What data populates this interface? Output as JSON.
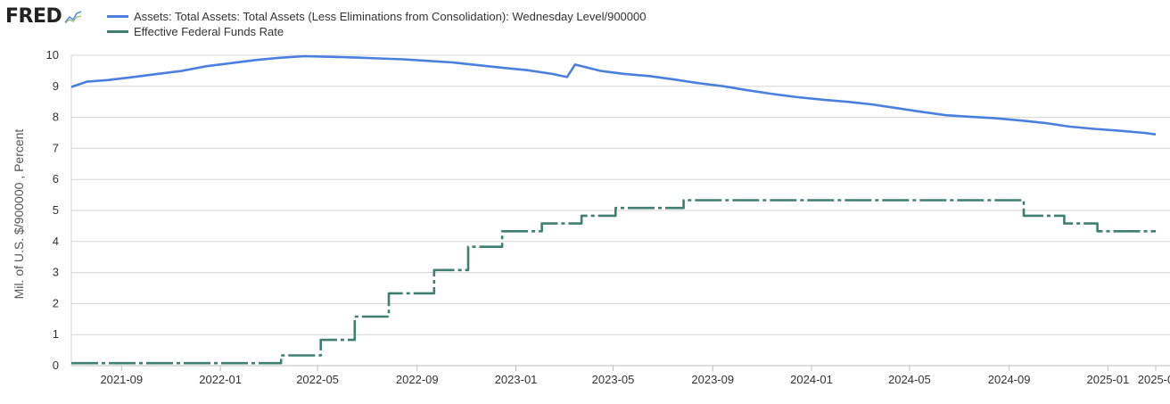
{
  "header": {
    "logo_text": "FRED",
    "logo_icon": "chart-line-icon"
  },
  "legend": {
    "items": [
      {
        "label": "Assets: Total Assets: Total Assets (Less Eliminations from Consolidation): Wednesday Level/900000",
        "color": "#4a7fe0"
      },
      {
        "label": "Effective Federal Funds Rate",
        "color": "#3f7f70"
      }
    ]
  },
  "chart_data": {
    "type": "line",
    "ylabel": "Mil. of U.S. $/900000 , Percent",
    "ylim": [
      0,
      10
    ],
    "yticks": [
      0,
      1,
      2,
      3,
      4,
      5,
      6,
      7,
      8,
      9,
      10
    ],
    "xlim": [
      "2021-07-01",
      "2025-03-01"
    ],
    "xticks": [
      "2021-09",
      "2022-01",
      "2022-05",
      "2022-09",
      "2023-01",
      "2023-05",
      "2023-09",
      "2024-01",
      "2024-05",
      "2024-09",
      "2025-01",
      "2025-0"
    ],
    "grid": "horizontal",
    "legend_position": "top-left",
    "series": [
      {
        "name": "Assets: Total Assets: Total Assets (Less Eliminations from Consolidation): Wednesday Level/900000",
        "color": "#4a7fe0",
        "style": "solid",
        "x": [
          "2021-07-01",
          "2021-07-20",
          "2021-08-15",
          "2021-09-15",
          "2021-10-15",
          "2021-11-15",
          "2021-12-15",
          "2022-01-15",
          "2022-02-15",
          "2022-03-15",
          "2022-04-15",
          "2022-05-15",
          "2022-06-15",
          "2022-07-15",
          "2022-08-15",
          "2022-09-15",
          "2022-10-15",
          "2022-11-15",
          "2022-12-15",
          "2023-01-15",
          "2023-02-15",
          "2023-03-05",
          "2023-03-15",
          "2023-04-15",
          "2023-05-15",
          "2023-06-15",
          "2023-07-15",
          "2023-08-15",
          "2023-09-15",
          "2023-10-15",
          "2023-11-15",
          "2023-12-15",
          "2024-01-15",
          "2024-02-15",
          "2024-03-15",
          "2024-04-15",
          "2024-05-15",
          "2024-06-15",
          "2024-07-15",
          "2024-08-15",
          "2024-09-15",
          "2024-10-15",
          "2024-11-15",
          "2024-12-15",
          "2025-01-15",
          "2025-02-15",
          "2025-03-01"
        ],
        "values": [
          8.98,
          9.15,
          9.2,
          9.3,
          9.4,
          9.5,
          9.65,
          9.75,
          9.85,
          9.92,
          9.97,
          9.95,
          9.93,
          9.9,
          9.87,
          9.82,
          9.77,
          9.68,
          9.6,
          9.52,
          9.4,
          9.3,
          9.7,
          9.5,
          9.4,
          9.33,
          9.22,
          9.1,
          9.0,
          8.87,
          8.75,
          8.65,
          8.57,
          8.5,
          8.42,
          8.3,
          8.18,
          8.07,
          8.02,
          7.97,
          7.9,
          7.82,
          7.7,
          7.63,
          7.57,
          7.5,
          7.45
        ]
      },
      {
        "name": "Effective Federal Funds Rate",
        "color": "#3f7f70",
        "style": "step-dashdot",
        "x": [
          "2021-07-01",
          "2022-03-17",
          "2022-05-05",
          "2022-06-16",
          "2022-07-28",
          "2022-09-22",
          "2022-11-03",
          "2022-12-15",
          "2023-02-02",
          "2023-03-23",
          "2023-05-04",
          "2023-07-27",
          "2024-09-19",
          "2024-11-08",
          "2024-12-19",
          "2025-03-01"
        ],
        "values": [
          0.08,
          0.33,
          0.83,
          1.58,
          2.33,
          3.08,
          3.83,
          4.33,
          4.58,
          4.83,
          5.08,
          5.33,
          4.83,
          4.58,
          4.33,
          4.33
        ]
      }
    ]
  }
}
